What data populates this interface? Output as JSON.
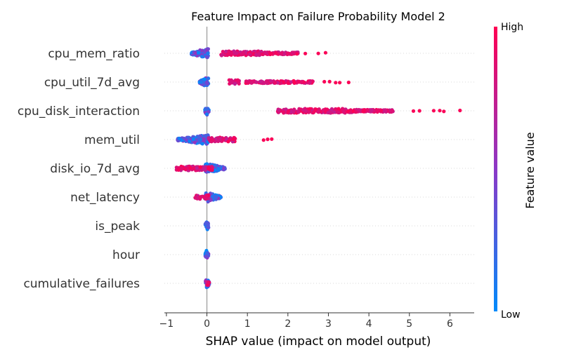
{
  "chart_data": {
    "type": "scatter",
    "subtype": "shap-beeswarm",
    "title": "Feature Impact on Failure Probability Model 2",
    "xlabel": "SHAP value (impact on model output)",
    "ylabel": "",
    "xlim": [
      -1.05,
      6.6
    ],
    "xticks": [
      -1,
      0,
      1,
      2,
      3,
      4,
      5,
      6
    ],
    "xtick_labels": [
      "−1",
      "0",
      "1",
      "2",
      "3",
      "4",
      "5",
      "6"
    ],
    "zero_line": 0,
    "grid": false,
    "colorbar": {
      "label": "Feature value",
      "high_label": "High",
      "low_label": "Low",
      "low_color": "#008bfb",
      "mid_color": "#8b38c7",
      "high_color": "#ff0052"
    },
    "features": [
      {
        "name": "cpu_mem_ratio",
        "low_cluster": [
          -0.38,
          0.05
        ],
        "high_segments": [
          [
            0.35,
            1.35
          ],
          [
            1.35,
            2.25
          ]
        ],
        "high_outliers": [
          2.43,
          2.75,
          2.93
        ]
      },
      {
        "name": "cpu_util_7d_avg",
        "low_cluster": [
          -0.18,
          0.05
        ],
        "high_segments": [
          [
            0.55,
            0.8
          ],
          [
            0.95,
            2.0
          ],
          [
            2.0,
            2.62
          ]
        ],
        "high_outliers": [
          2.9,
          3.03,
          3.18,
          3.28,
          3.5
        ]
      },
      {
        "name": "cpu_disk_interaction",
        "low_cluster": [
          -0.05,
          0.05
        ],
        "high_segments": [
          [
            1.75,
            3.6
          ],
          [
            3.6,
            4.6
          ]
        ],
        "high_outliers": [
          5.1,
          5.25,
          5.6,
          5.75,
          5.85,
          6.25
        ]
      },
      {
        "name": "mem_util",
        "low_cluster": [
          -0.72,
          0.05
        ],
        "high_segments": [
          [
            0.0,
            0.7
          ]
        ],
        "high_outliers": [
          1.4,
          1.5,
          1.6
        ]
      },
      {
        "name": "disk_io_7d_avg",
        "low_cluster": [
          -0.05,
          0.45
        ],
        "high_segments": [
          [
            -0.75,
            0.15
          ]
        ],
        "high_outliers": []
      },
      {
        "name": "net_latency",
        "low_cluster": [
          -0.05,
          0.35
        ],
        "high_segments": [
          [
            -0.3,
            0.05
          ]
        ],
        "high_outliers": []
      },
      {
        "name": "is_peak",
        "low_cluster": [
          -0.04,
          0.04
        ],
        "high_segments": [],
        "high_outliers": []
      },
      {
        "name": "hour",
        "low_cluster": [
          -0.04,
          0.04
        ],
        "high_segments": [],
        "high_outliers": []
      },
      {
        "name": "cumulative_failures",
        "low_cluster": [
          -0.04,
          0.06
        ],
        "high_segments": [
          [
            -0.02,
            0.06
          ]
        ],
        "high_outliers": []
      }
    ]
  }
}
